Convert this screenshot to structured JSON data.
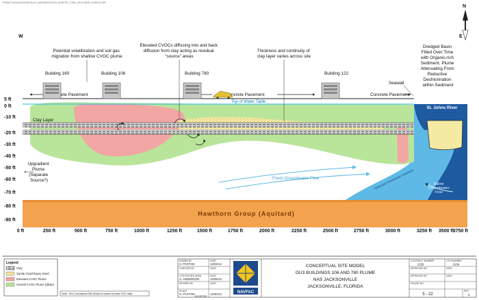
{
  "file_path": "PGM:P:\\G\\JACKSONVILLE_NAS\\MXD\\OU3_NORTH_CSM_2013.MXD 12/30/13 BP",
  "compass": {
    "west": "W",
    "east": "E",
    "north": "N"
  },
  "annotations": {
    "volatilization": "Potential volatilization and soil gas migration from shallow CVOC plume",
    "elevated_cvocs": "Elevated CVOCs diffusing into and back diffusion from clay acting as residual “source” areas",
    "thickness": "Thickness and continuity of clay layer varies across site",
    "dredged_basin": "Dredged Basin Filled Over Time with Organic-rich Sediment. Plume Attenuating From Reductive Dechlorination within Sediment",
    "seawall": "Seawall",
    "upgradient": "Upgradient Plume (Separate Source?)",
    "clay_layer": "Clay Layer",
    "water_table": "Top of Water Table",
    "fresh_gw": "Fresh Groundwater Flow",
    "saline_gw": "Saline Groundwater Flow",
    "st_johns": "St. Johns River",
    "interface": "Saltwater-Freshwater Interface",
    "hawthorn": "Hawthorn Group (Aquitard)"
  },
  "buildings": [
    "Building 160",
    "Building 106",
    "Building 780",
    "Building 122"
  ],
  "pavements": [
    "Concrete Pavement",
    "Concrete Pavement",
    "Concrete Pavement"
  ],
  "y_axis": [
    "5 ft",
    "0 ft",
    "-10 ft",
    "-20 ft",
    "-30 ft",
    "-40 ft",
    "-50 ft",
    "-60 ft",
    "-70 ft",
    "-80 ft",
    "-90 ft"
  ],
  "x_axis": [
    "0 ft",
    "250 ft",
    "500 ft",
    "750 ft",
    "1000 ft",
    "1250 ft",
    "1500 ft",
    "1750 ft",
    "2000 ft",
    "2250 ft",
    "2500 ft",
    "2750 ft",
    "3000 ft",
    "3250 ft",
    "3500 ft",
    "3750 ft"
  ],
  "legend": {
    "title": "Legend",
    "items": [
      "Clay",
      "Sandy Clay/Clayey Sand",
      "Elevated CVOC Plume",
      "Overall CVOC Plume (dilute)"
    ]
  },
  "note": "Note: This Conceptual Site Model is based on total VOC data.",
  "title_block": {
    "rows": [
      {
        "label": "DRAWN BY",
        "name": "S. PAXTON",
        "date_label": "DATE",
        "date": "12/02/13"
      },
      {
        "label": "CHECKED BY",
        "name": "",
        "date_label": "DATE",
        "date": ""
      },
      {
        "label": "COST/SCHED AREA",
        "name": "S. ANDERSON",
        "date_label": "DATE",
        "date": "12/06/13"
      },
      {
        "label": "REVISED BY",
        "name": "",
        "date_label": "DATE",
        "date": ""
      },
      {
        "label": "SCALE",
        "name": "S. PAXTON",
        "date_label": "",
        "date": "12/30/13"
      }
    ],
    "scale_value": "AS NOTED",
    "logo": "NAVFAC",
    "title_lines": [
      "CONCEPTUAL SITE MODEL",
      "OU3 BUILDINGS 106 AND 780 PLUME",
      "NAS JACKSONVILLE",
      "JACKSONVILLE, FLORIDA"
    ],
    "right": {
      "contract_label": "CONTRACT NUMBER",
      "contract_value": "2156",
      "ctoo_label": "CTO NUMBER",
      "ctoo_value": "0154",
      "approved1_label": "APPROVED BY",
      "approved1_value": "",
      "approved2_label": "APPROVED BY",
      "approved2_value": "",
      "date_label": "DATE",
      "date_value": "DATE",
      "date2_value": "DATE",
      "figure_label": "FIGURE NO.",
      "figure_value": "5 - 22",
      "rev_label": "REV",
      "rev_value": "0"
    }
  },
  "colors": {
    "overall_plume": "#b9e59a",
    "elevated_plume": "#f1a6a4",
    "clay": "#8a8a8a",
    "sandy": "#f4eaa2",
    "hawthorn": "#f3a24e",
    "river": "#1d5aa0",
    "saline": "#5fb9e6",
    "water_table": "#22b8e8",
    "logo_blue": "#1e4a8c"
  }
}
